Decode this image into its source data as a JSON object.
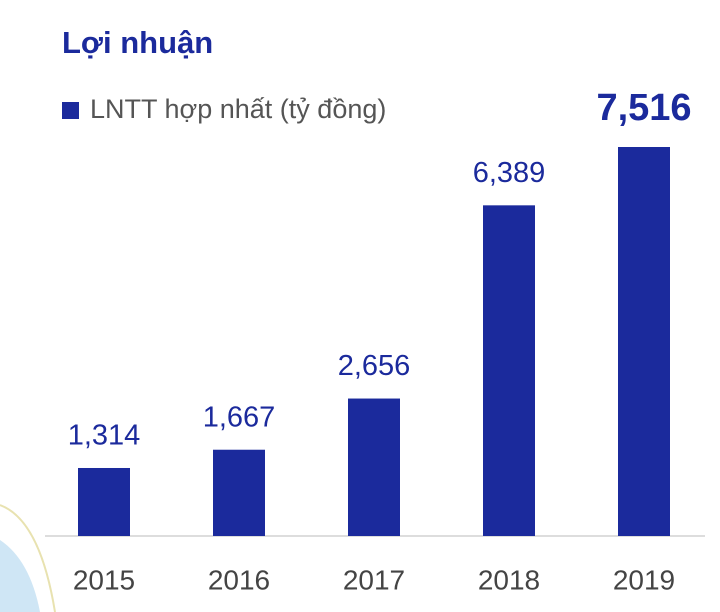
{
  "chart_data": {
    "type": "bar",
    "title": "Lợi nhuận",
    "categories": [
      "2015",
      "2016",
      "2017",
      "2018",
      "2019"
    ],
    "series": [
      {
        "name": "LNTT hợp nhất (tỷ đồng)",
        "color": "#1b2a9c",
        "values": [
          1314,
          1667,
          2656,
          6389,
          7516
        ],
        "value_labels": [
          "1,314",
          "1,667",
          "2,656",
          "6,389",
          "7,516"
        ]
      }
    ]
  }
}
